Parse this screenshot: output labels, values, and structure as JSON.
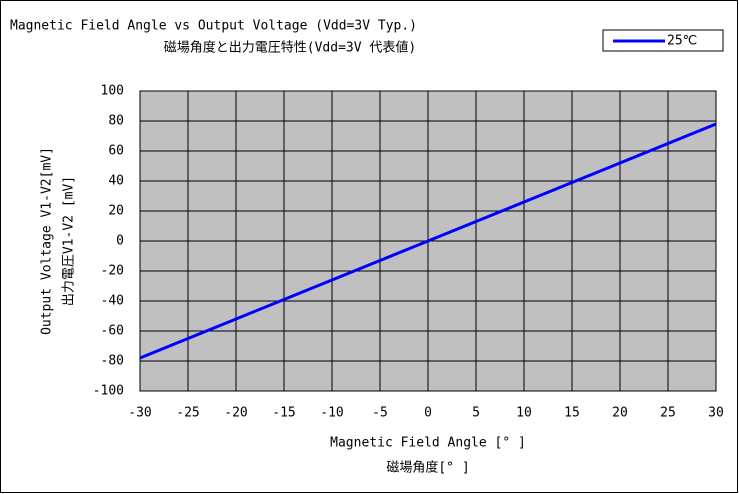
{
  "chart_data": {
    "type": "line",
    "title": "Magnetic Field Angle vs Output Voltage (Vdd=3V Typ.)",
    "subtitle": "磁場角度と出力電圧特性(Vdd=3V 代表値)",
    "x_label": "Magnetic Field Angle [° ]",
    "x_label_2": "磁場角度[° ]",
    "y_label": "Output Voltage V1-V2[mV]",
    "y_label_2": "出力電圧V1-V2 [mV]",
    "x": [
      -30,
      -25,
      -20,
      -15,
      -10,
      -5,
      0,
      5,
      10,
      15,
      20,
      25,
      30
    ],
    "series": [
      {
        "name": "25℃",
        "color": "#0000ff",
        "values": [
          -78,
          -65,
          -52,
          -39,
          -26,
          -13,
          0,
          13,
          26,
          39,
          52,
          65,
          78
        ]
      }
    ],
    "xlim": [
      -30,
      30
    ],
    "xticks": [
      -30,
      -25,
      -20,
      -15,
      -10,
      -5,
      0,
      5,
      10,
      15,
      20,
      25,
      30
    ],
    "ylim": [
      -100,
      100
    ],
    "yticks": [
      -100,
      -80,
      -60,
      -40,
      -20,
      0,
      20,
      40,
      60,
      80,
      100
    ],
    "grid": true,
    "legend": "top-right",
    "background": "#c0c0c0"
  }
}
